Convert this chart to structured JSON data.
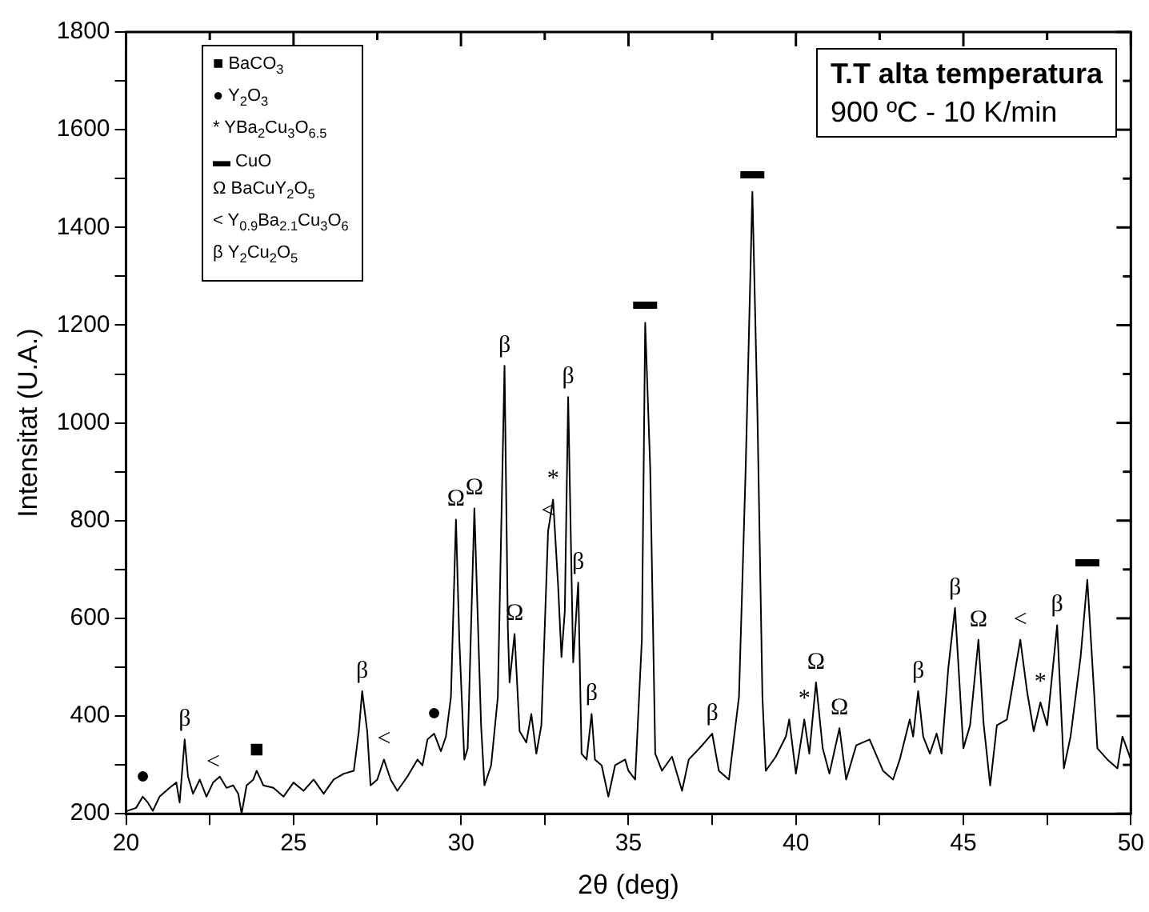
{
  "chart_data": {
    "type": "line",
    "title": "T.T alta temperatura",
    "subtitle": "900 ºC - 10 K/min",
    "xlabel": "2θ (deg)",
    "ylabel": "Intensitat (U.A.)",
    "x": [
      20.0,
      20.3,
      20.5,
      20.65,
      20.8,
      21.0,
      21.3,
      21.5,
      21.6,
      21.75,
      21.85,
      22.0,
      22.2,
      22.4,
      22.6,
      22.8,
      23.0,
      23.2,
      23.35,
      23.45,
      23.6,
      23.8,
      23.9,
      24.1,
      24.4,
      24.7,
      25.0,
      25.3,
      25.6,
      25.9,
      26.2,
      26.5,
      26.8,
      26.95,
      27.05,
      27.2,
      27.3,
      27.5,
      27.7,
      27.9,
      28.1,
      28.4,
      28.7,
      28.85,
      29.0,
      29.2,
      29.4,
      29.55,
      29.7,
      29.85,
      29.95,
      30.1,
      30.2,
      30.4,
      30.6,
      30.7,
      30.9,
      31.1,
      31.3,
      31.4,
      31.45,
      31.6,
      31.75,
      31.95,
      32.1,
      32.25,
      32.4,
      32.6,
      32.75,
      32.9,
      33.0,
      33.1,
      33.2,
      33.35,
      33.5,
      33.6,
      33.75,
      33.9,
      34.0,
      34.2,
      34.4,
      34.6,
      34.9,
      35.0,
      35.2,
      35.4,
      35.5,
      35.65,
      35.8,
      36.0,
      36.3,
      36.6,
      36.8,
      37.2,
      37.5,
      37.7,
      38.0,
      38.3,
      38.5,
      38.7,
      38.85,
      39.0,
      39.1,
      39.4,
      39.7,
      39.8,
      40.0,
      40.25,
      40.4,
      40.6,
      40.8,
      41.0,
      41.3,
      41.5,
      41.8,
      42.2,
      42.6,
      42.9,
      43.1,
      43.4,
      43.5,
      43.65,
      43.8,
      44.0,
      44.2,
      44.35,
      44.55,
      44.75,
      45.0,
      45.2,
      45.45,
      45.6,
      45.8,
      46.0,
      46.3,
      46.5,
      46.7,
      46.9,
      47.1,
      47.3,
      47.5,
      47.8,
      48.0,
      48.2,
      48.5,
      48.7,
      48.9,
      49.0,
      49.3,
      49.6,
      49.75,
      50.0
    ],
    "series": [
      {
        "color": "#000000",
        "values": [
          205,
          212,
          235,
          223,
          206,
          235,
          253,
          264,
          223,
          352,
          276,
          241,
          270,
          235,
          264,
          276,
          253,
          258,
          241,
          200,
          258,
          270,
          288,
          258,
          253,
          235,
          264,
          247,
          270,
          241,
          270,
          282,
          288,
          369,
          451,
          369,
          258,
          270,
          311,
          270,
          247,
          276,
          311,
          299,
          352,
          364,
          328,
          358,
          439,
          802,
          556,
          311,
          334,
          825,
          381,
          258,
          299,
          439,
          1117,
          580,
          469,
          568,
          369,
          346,
          404,
          323,
          381,
          778,
          843,
          667,
          521,
          615,
          1053,
          510,
          673,
          323,
          311,
          404,
          311,
          299,
          235,
          299,
          311,
          288,
          270,
          556,
          1205,
          907,
          323,
          288,
          317,
          247,
          311,
          340,
          364,
          288,
          270,
          439,
          907,
          1473,
          1024,
          439,
          288,
          317,
          358,
          393,
          282,
          393,
          323,
          469,
          334,
          282,
          375,
          270,
          340,
          352,
          288,
          270,
          311,
          393,
          358,
          451,
          358,
          323,
          364,
          323,
          498,
          621,
          334,
          381,
          556,
          387,
          258,
          381,
          393,
          475,
          556,
          451,
          369,
          428,
          381,
          586,
          293,
          358,
          521,
          679,
          451,
          334,
          311,
          293,
          358,
          311
        ]
      }
    ],
    "xlim": [
      20,
      50
    ],
    "xticks": [
      20,
      {
        "value": 22.5,
        "label": null
      },
      25,
      {
        "value": 27.5,
        "label": null
      },
      30,
      {
        "value": 32.5,
        "label": null
      },
      35,
      {
        "value": 37.5,
        "label": null
      },
      40,
      {
        "value": 42.5,
        "label": null
      },
      45,
      {
        "value": 47.5,
        "label": null
      },
      50
    ],
    "ylim": [
      200,
      1800
    ],
    "yticks": [
      200,
      {
        "value": 300,
        "label": null
      },
      400,
      {
        "value": 500,
        "label": null
      },
      600,
      {
        "value": 700,
        "label": null
      },
      800,
      {
        "value": 900,
        "label": null
      },
      1000,
      {
        "value": 1100,
        "label": null
      },
      1200,
      {
        "value": 1300,
        "label": null
      },
      1400,
      {
        "value": 1500,
        "label": null
      },
      1600,
      {
        "value": 1700,
        "label": null
      },
      1800
    ],
    "grid": false,
    "legend": false,
    "marker": "none",
    "line_style": "solid",
    "annotations": [
      "■ BaCO$_{3}$",
      "● Y$_{2}$O$_{3}$",
      "* YBa$_{2}$Cu$_{3}$O$_{6.5}$",
      "▬ CuO",
      "Ω BaCuY$_{2}$O$_{5}$",
      "< Y$_{0.9}$Ba$_{2.1}$Cu$_{3}$O$_{6}$",
      "β Y$_{2}$Cu$_{2}$O$_{5}$",
      {
        "text": "●",
        "x": 20.5,
        "y": 235
      },
      {
        "text": "β",
        "x": 21.75,
        "y": 352
      },
      {
        "text": "<",
        "x": 22.6,
        "y": 264
      },
      {
        "text": "■",
        "x": 23.9,
        "y": 288
      },
      {
        "text": "β",
        "x": 27.05,
        "y": 451
      },
      {
        "text": "<",
        "x": 27.7,
        "y": 311
      },
      {
        "text": "●",
        "x": 29.2,
        "y": 364
      },
      {
        "text": "Ω",
        "x": 29.85,
        "y": 802
      },
      {
        "text": "Ω",
        "x": 30.4,
        "y": 825
      },
      {
        "text": "β",
        "x": 31.3,
        "y": 1117
      },
      {
        "text": "Ω",
        "x": 31.6,
        "y": 568
      },
      {
        "text": "<",
        "x": 32.6,
        "y": 778
      },
      {
        "text": "*",
        "x": 32.75,
        "y": 843
      },
      {
        "text": "β",
        "x": 33.2,
        "y": 1053
      },
      {
        "text": "β",
        "x": 33.5,
        "y": 673
      },
      {
        "text": "β",
        "x": 33.9,
        "y": 404
      },
      {
        "text": "▬",
        "x": 35.5,
        "y": 1205
      },
      {
        "text": "β",
        "x": 37.5,
        "y": 364
      },
      {
        "text": "▬",
        "x": 38.7,
        "y": 1473
      },
      {
        "text": "*",
        "x": 40.25,
        "y": 393
      },
      {
        "text": "Ω",
        "x": 40.6,
        "y": 469
      },
      {
        "text": "Ω",
        "x": 41.3,
        "y": 375
      },
      {
        "text": "β",
        "x": 43.65,
        "y": 451
      },
      {
        "text": "β",
        "x": 44.75,
        "y": 621
      },
      {
        "text": "Ω",
        "x": 45.45,
        "y": 556
      },
      {
        "text": "<",
        "x": 46.7,
        "y": 556
      },
      {
        "text": "*",
        "x": 47.3,
        "y": 428
      },
      {
        "text": "β",
        "x": 47.8,
        "y": 586
      },
      {
        "text": "▬",
        "x": 48.7,
        "y": 679
      }
    ]
  }
}
